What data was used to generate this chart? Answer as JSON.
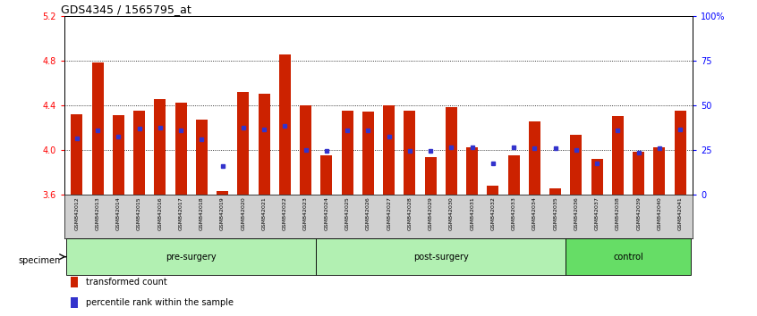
{
  "title": "GDS4345 / 1565795_at",
  "samples": [
    "GSM842012",
    "GSM842013",
    "GSM842014",
    "GSM842015",
    "GSM842016",
    "GSM842017",
    "GSM842018",
    "GSM842019",
    "GSM842020",
    "GSM842021",
    "GSM842022",
    "GSM842023",
    "GSM842024",
    "GSM842025",
    "GSM842026",
    "GSM842027",
    "GSM842028",
    "GSM842029",
    "GSM842030",
    "GSM842031",
    "GSM842032",
    "GSM842033",
    "GSM842034",
    "GSM842035",
    "GSM842036",
    "GSM842037",
    "GSM842038",
    "GSM842039",
    "GSM842040",
    "GSM842041"
  ],
  "red_values": [
    4.32,
    4.78,
    4.31,
    4.35,
    4.45,
    4.42,
    4.27,
    3.63,
    4.52,
    4.5,
    4.85,
    4.4,
    3.95,
    4.35,
    4.34,
    4.4,
    4.35,
    3.93,
    4.38,
    4.02,
    3.68,
    3.95,
    4.25,
    3.65,
    4.13,
    3.92,
    4.3,
    3.98,
    4.02,
    4.35
  ],
  "blue_values": [
    4.1,
    4.17,
    4.12,
    4.19,
    4.2,
    4.17,
    4.09,
    3.85,
    4.2,
    4.18,
    4.21,
    4.0,
    3.99,
    4.17,
    4.17,
    4.12,
    3.99,
    3.99,
    4.02,
    4.02,
    3.88,
    4.02,
    4.01,
    4.01,
    4.0,
    3.88,
    4.17,
    3.97,
    4.01,
    4.18
  ],
  "group_defs": [
    {
      "label": "pre-surgery",
      "start": 0,
      "end": 11,
      "color": "#b2f0b2"
    },
    {
      "label": "post-surgery",
      "start": 12,
      "end": 23,
      "color": "#b2f0b2"
    },
    {
      "label": "control",
      "start": 24,
      "end": 29,
      "color": "#66dd66"
    }
  ],
  "ylim": [
    3.6,
    5.2
  ],
  "yticks": [
    3.6,
    4.0,
    4.4,
    4.8,
    5.2
  ],
  "right_yticks": [
    0,
    25,
    50,
    75,
    100
  ],
  "right_ytick_labels": [
    "0",
    "25",
    "50",
    "75",
    "100%"
  ],
  "grid_values": [
    4.0,
    4.4,
    4.8
  ],
  "bar_color": "#CC2200",
  "dot_color": "#3333CC",
  "bar_width": 0.55,
  "tick_bg_color": "#d0d0d0"
}
